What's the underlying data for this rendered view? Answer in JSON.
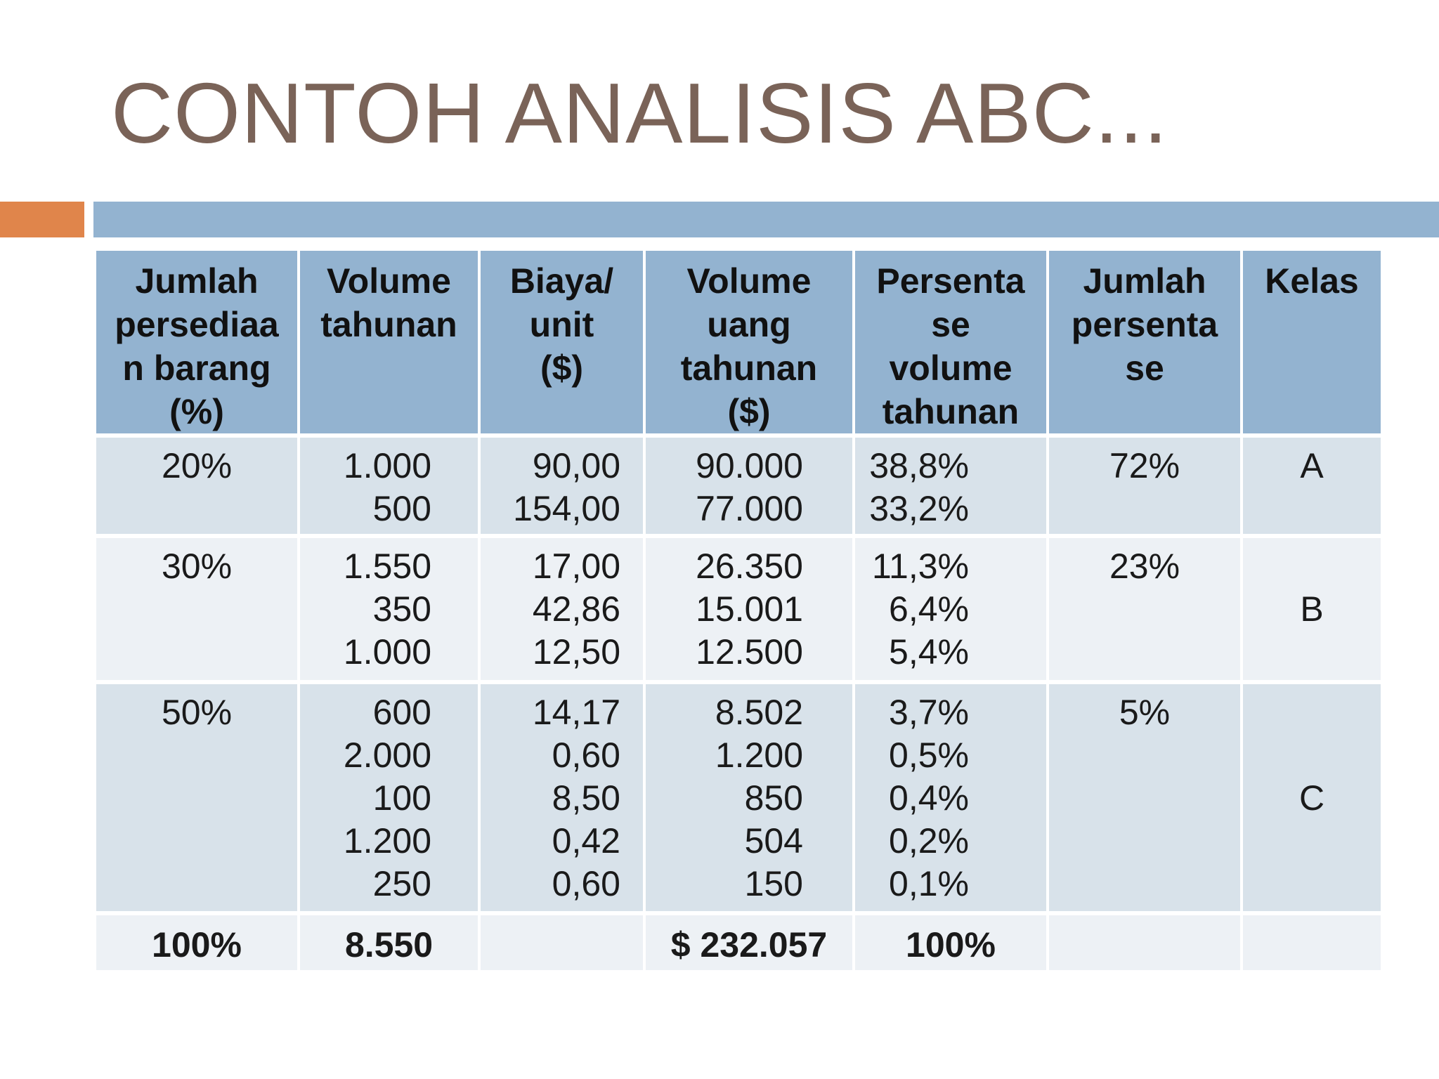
{
  "title": "CONTOH ANALISIS ABC...",
  "colors": {
    "title": "#7a6358",
    "accent_orange": "#e0854b",
    "accent_blue": "#93b3d0"
  },
  "headers": [
    [
      "Jumlah",
      "persediaa",
      "n barang",
      "(%)"
    ],
    [
      "Volume",
      "tahunan"
    ],
    [
      "Biaya/",
      "unit",
      "($)"
    ],
    [
      "Volume",
      "uang",
      "tahunan",
      "($)"
    ],
    [
      "Persenta",
      "se",
      "volume",
      "tahunan"
    ],
    [
      "Jumlah",
      "persenta",
      "se"
    ],
    [
      "Kelas"
    ]
  ],
  "groups": [
    {
      "item_pct": "20%",
      "volume": [
        "1.000",
        "500"
      ],
      "cost": [
        "90,00",
        "154,00"
      ],
      "money_volume": [
        "90.000",
        "77.000"
      ],
      "pct_volume": [
        "38,8%",
        "33,2%"
      ],
      "cum_pct": "72%",
      "class": "A"
    },
    {
      "item_pct": "30%",
      "volume": [
        "1.550",
        "350",
        "1.000"
      ],
      "cost": [
        "17,00",
        "42,86",
        "12,50"
      ],
      "money_volume": [
        "26.350",
        "15.001",
        "12.500"
      ],
      "pct_volume": [
        "11,3%",
        "6,4%",
        "5,4%"
      ],
      "cum_pct": "23%",
      "class": "B"
    },
    {
      "item_pct": "50%",
      "volume": [
        "600",
        "2.000",
        "100",
        "1.200",
        "250"
      ],
      "cost": [
        "14,17",
        "0,60",
        "8,50",
        "0,42",
        "0,60"
      ],
      "money_volume": [
        "8.502",
        "1.200",
        "850",
        "504",
        "150"
      ],
      "pct_volume": [
        "3,7%",
        "0,5%",
        "0,4%",
        "0,2%",
        "0,1%"
      ],
      "cum_pct": "5%",
      "class": "C"
    }
  ],
  "totals": {
    "item_pct": "100%",
    "volume": "8.550",
    "cost": "",
    "money_volume": "$ 232.057",
    "pct_volume": "100%",
    "cum_pct": "",
    "class": ""
  }
}
